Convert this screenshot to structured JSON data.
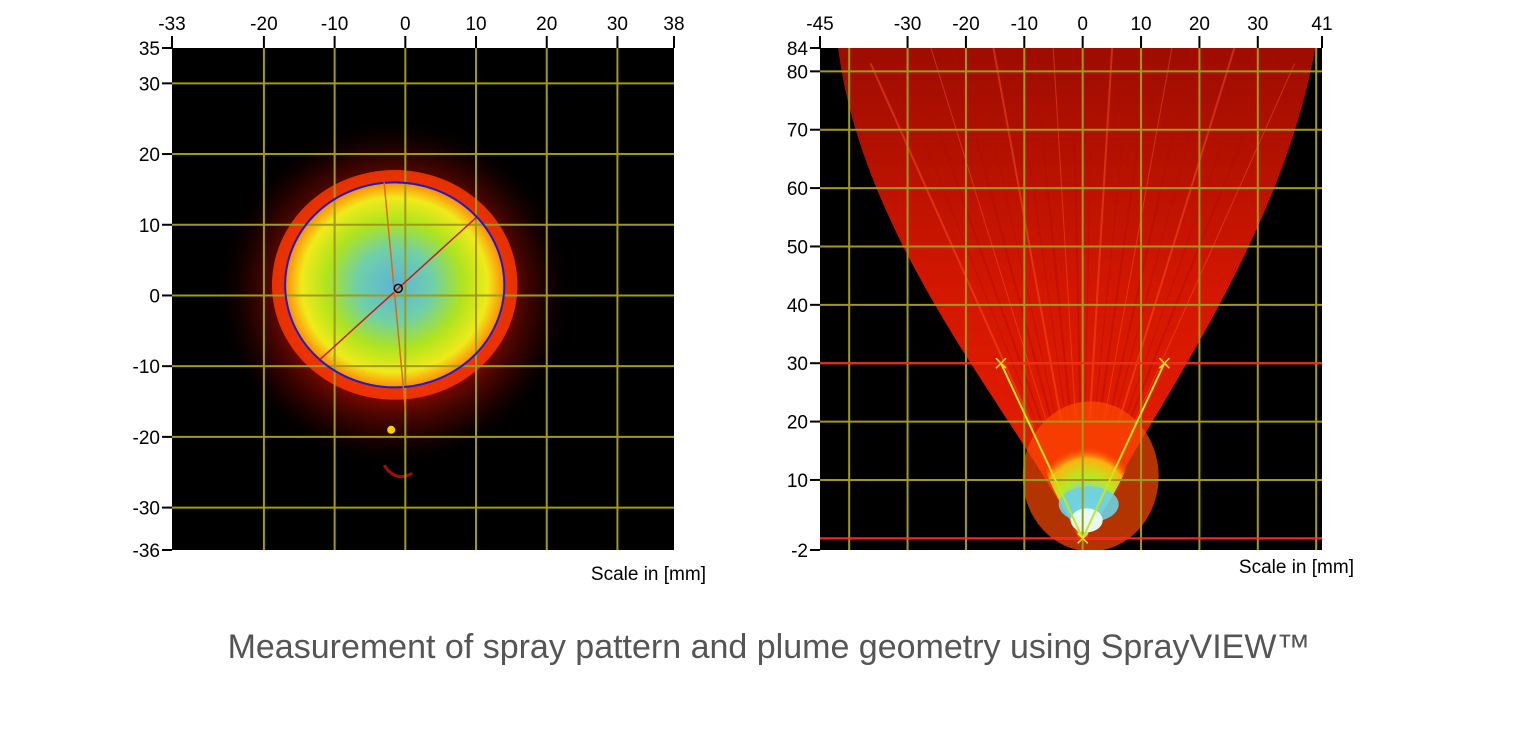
{
  "caption": "Measurement of spray pattern and plume geometry using SprayVIEW™",
  "chart_data": [
    {
      "type": "heatmap",
      "title": "",
      "xlabel": "Scale in [mm]",
      "ylabel": "",
      "xlim": [
        -33,
        38
      ],
      "ylim": [
        -36,
        35
      ],
      "x_ticks": [
        -33,
        -20,
        -10,
        0,
        10,
        20,
        30,
        38
      ],
      "y_ticks": [
        35,
        30,
        20,
        10,
        0,
        -10,
        -20,
        -30,
        -36
      ],
      "grid_x": [
        -20,
        -10,
        0,
        10,
        20,
        30
      ],
      "grid_y": [
        30,
        20,
        10,
        0,
        -10,
        -20,
        -30
      ],
      "grid": true,
      "spray_pattern": {
        "center": [
          -1,
          1
        ],
        "boundary_radii": {
          "left": 16,
          "right": 15,
          "top": 15,
          "bottom": 14
        },
        "major_axis": [
          [
            -12,
            -9
          ],
          [
            10,
            11
          ]
        ],
        "minor_axis": [
          [
            -3,
            16
          ],
          [
            0,
            -16
          ]
        ]
      },
      "colors": {
        "background": "#000000",
        "grid": "#a09a18",
        "boundary": "#1c1ccc",
        "axis_line": "#d01818",
        "fill_core": "#5fb8d6",
        "fill_mid": "#b6e61a",
        "fill_edge": "#ff1a00"
      }
    },
    {
      "type": "heatmap",
      "title": "",
      "xlabel": "Scale in [mm]",
      "ylabel": "",
      "xlim": [
        -45,
        41
      ],
      "ylim": [
        -2,
        84
      ],
      "x_ticks": [
        -45,
        -30,
        -20,
        -10,
        0,
        10,
        20,
        30,
        41
      ],
      "y_ticks": [
        84,
        80,
        70,
        60,
        50,
        40,
        30,
        20,
        10,
        -2
      ],
      "grid_x": [
        -40,
        -30,
        -20,
        -10,
        0,
        10,
        20,
        30,
        40
      ],
      "grid_y": [
        80,
        70,
        60,
        50,
        40,
        30,
        20,
        10,
        0
      ],
      "grid": true,
      "plume_geometry": {
        "vertex": [
          0,
          0
        ],
        "measurement_height": 30,
        "left_edge_point": [
          -14,
          30
        ],
        "right_edge_point": [
          14,
          30
        ]
      },
      "colors": {
        "background": "#000000",
        "grid": "#a09a18",
        "plume": "#ff1a00",
        "angle_lines": "#c8e61a",
        "height_line": "#ff2020",
        "core": "#5fb8d6"
      }
    }
  ]
}
